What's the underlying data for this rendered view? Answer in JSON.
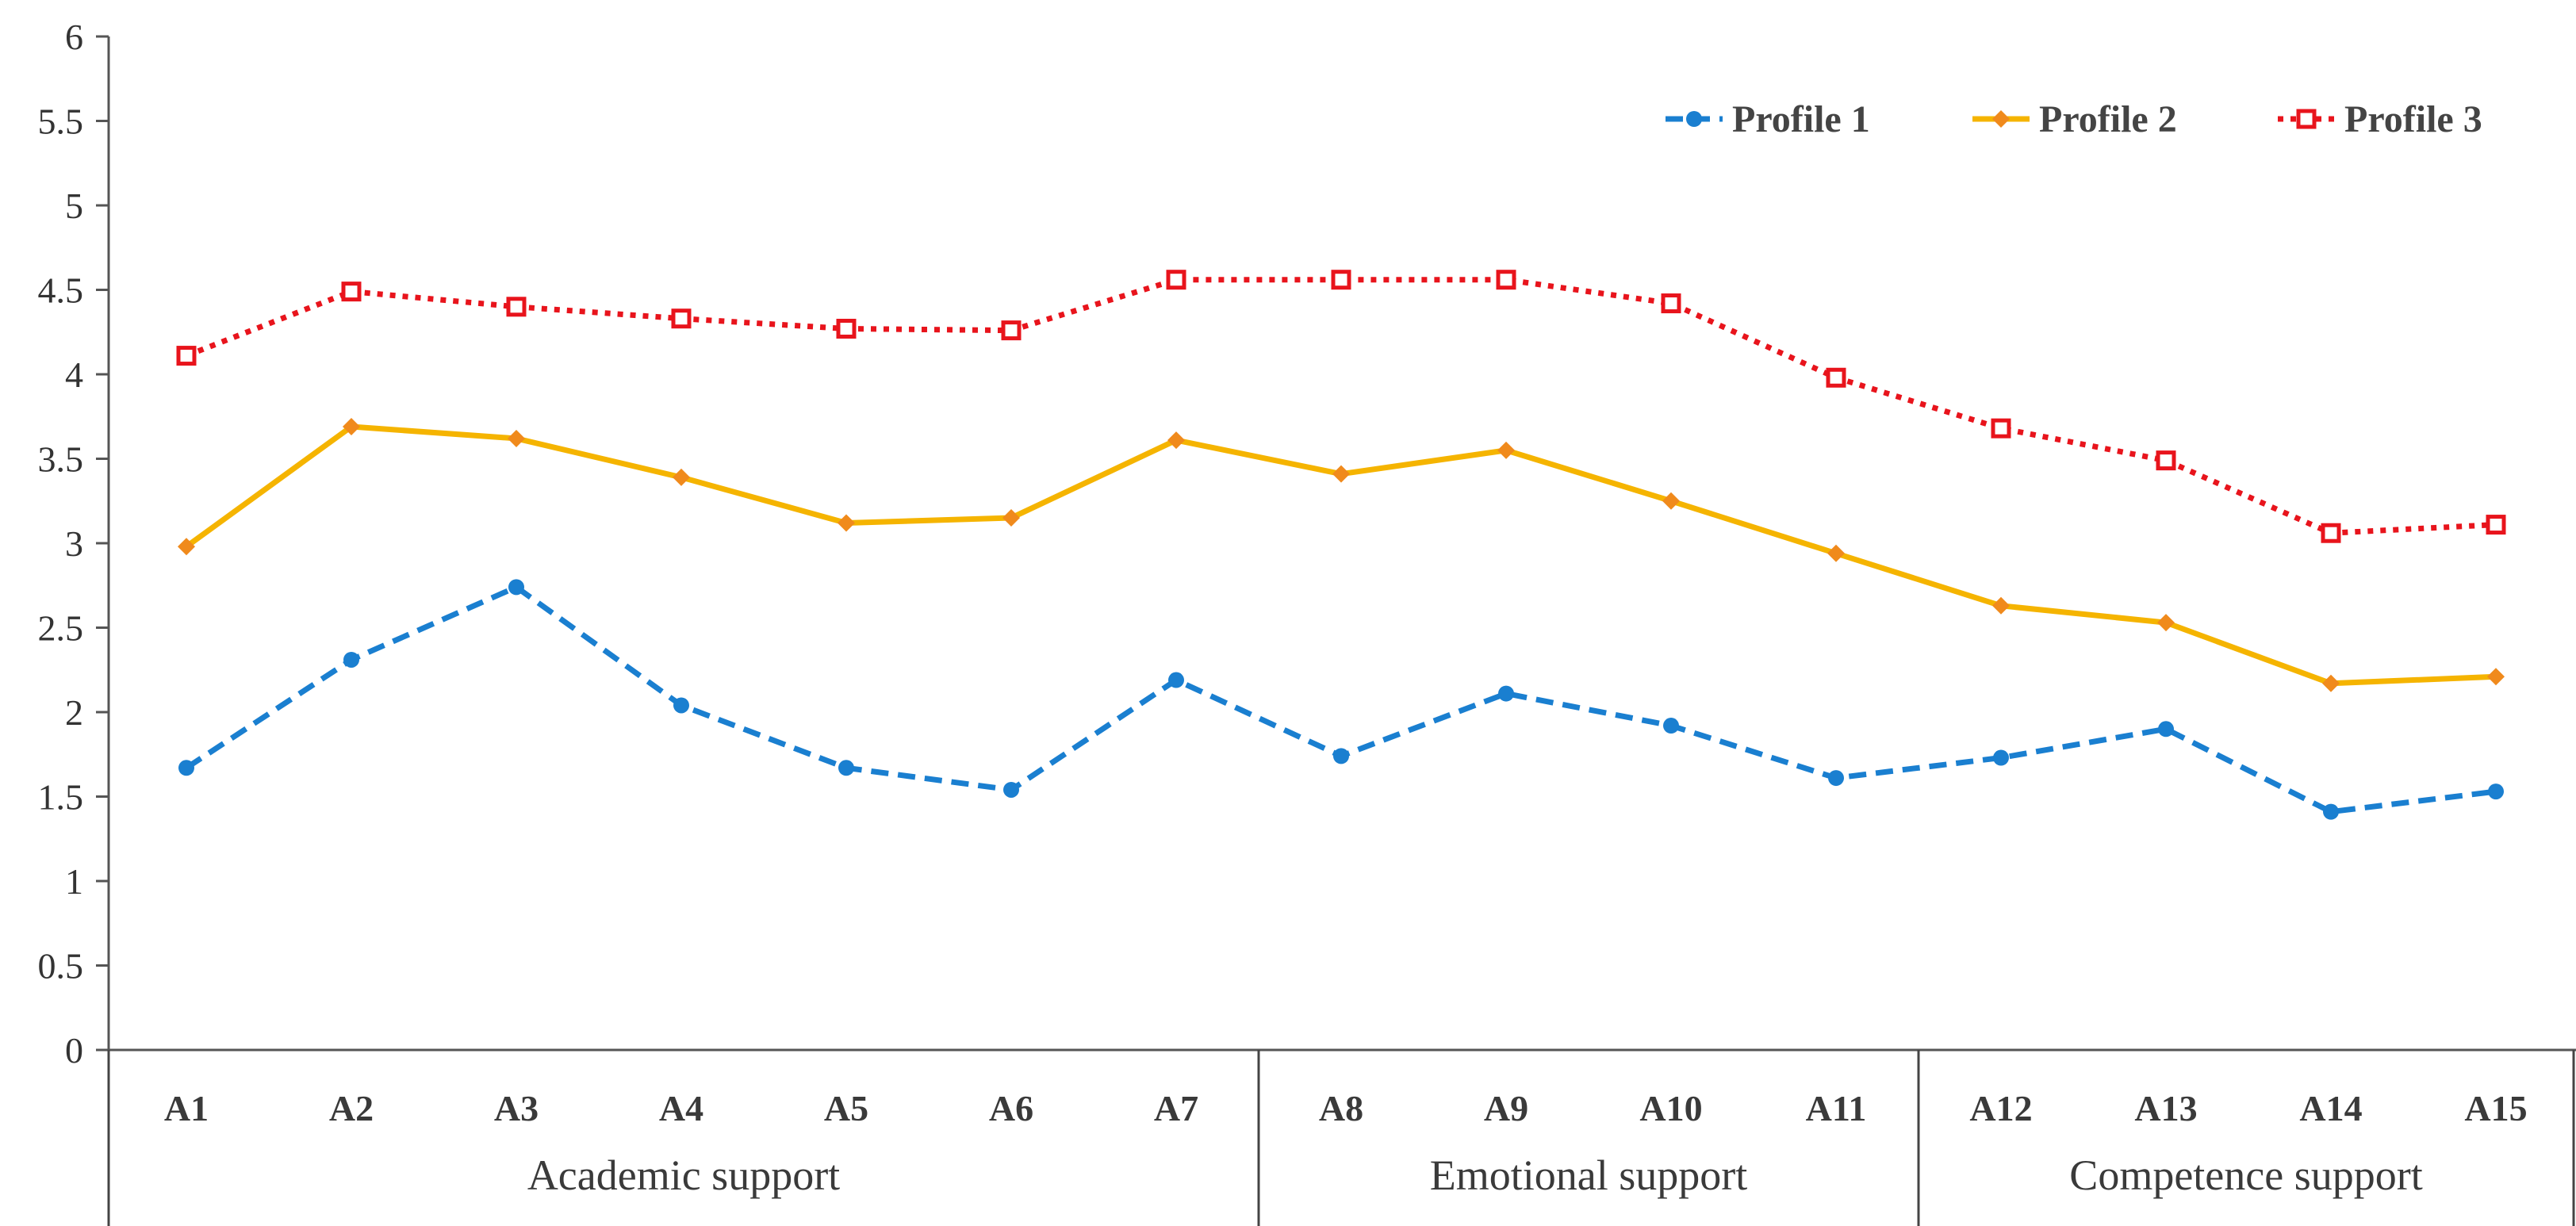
{
  "chart_data": {
    "type": "line",
    "title": "",
    "xlabel": "",
    "ylabel": "",
    "ylim": [
      0,
      6
    ],
    "yticks": [
      "0",
      "0.5",
      "1",
      "1.5",
      "2",
      "2.5",
      "3",
      "3.5",
      "4",
      "4.5",
      "5",
      "5.5",
      "6"
    ],
    "grid": false,
    "legend_position": "top-right",
    "categories": [
      "A1",
      "A2",
      "A3",
      "A4",
      "A5",
      "A6",
      "A7",
      "A8",
      "A9",
      "A10",
      "A11",
      "A12",
      "A13",
      "A14",
      "A15"
    ],
    "groups": [
      {
        "label": "Academic support",
        "members": [
          "A1",
          "A2",
          "A3",
          "A4",
          "A5",
          "A6",
          "A7"
        ]
      },
      {
        "label": "Emotional support",
        "members": [
          "A8",
          "A9",
          "A10",
          "A11"
        ]
      },
      {
        "label": "Competence support",
        "members": [
          "A12",
          "A13",
          "A14",
          "A15"
        ]
      }
    ],
    "series": [
      {
        "name": "Profile 1",
        "color": "#1a7fd0",
        "line_style": "dashed",
        "marker": "circle",
        "values": [
          1.67,
          2.31,
          2.74,
          2.04,
          1.67,
          1.54,
          2.19,
          1.74,
          2.11,
          1.92,
          1.61,
          1.73,
          1.9,
          1.41,
          1.53
        ]
      },
      {
        "name": "Profile 2",
        "color": "#f5b400",
        "marker_color": "#f08a1c",
        "line_style": "solid",
        "marker": "diamond",
        "values": [
          2.98,
          3.69,
          3.62,
          3.39,
          3.12,
          3.15,
          3.61,
          3.41,
          3.55,
          3.25,
          2.94,
          2.63,
          2.53,
          2.17,
          2.21
        ]
      },
      {
        "name": "Profile 3",
        "color": "#e8141c",
        "line_style": "dotted",
        "marker": "square",
        "values": [
          4.11,
          4.49,
          4.4,
          4.33,
          4.27,
          4.26,
          4.56,
          4.56,
          4.56,
          4.42,
          3.98,
          3.68,
          3.49,
          3.06,
          3.11
        ]
      }
    ]
  }
}
